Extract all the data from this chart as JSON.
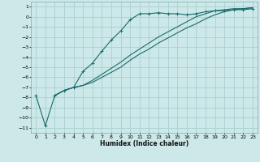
{
  "xlabel": "Humidex (Indice chaleur)",
  "ylabel": "",
  "bg_color": "#cce8e8",
  "grid_color": "#aad0d0",
  "line_color": "#1a6b6b",
  "xlim": [
    -0.5,
    23.5
  ],
  "ylim": [
    -11.5,
    1.5
  ],
  "xticks": [
    0,
    1,
    2,
    3,
    4,
    5,
    6,
    7,
    8,
    9,
    10,
    11,
    12,
    13,
    14,
    15,
    16,
    17,
    18,
    19,
    20,
    21,
    22,
    23
  ],
  "yticks": [
    1,
    0,
    -1,
    -2,
    -3,
    -4,
    -5,
    -6,
    -7,
    -8,
    -9,
    -10,
    -11
  ],
  "line1_x": [
    0,
    1,
    2,
    3,
    4,
    5,
    6,
    7,
    8,
    9,
    10,
    11,
    12,
    13,
    14,
    15,
    16,
    17,
    18,
    19,
    20,
    21,
    22,
    23
  ],
  "line1_y": [
    -7.8,
    -10.8,
    -7.8,
    -7.3,
    -7.0,
    -5.4,
    -4.6,
    -3.4,
    -2.3,
    -1.4,
    -0.3,
    0.3,
    0.3,
    0.4,
    0.3,
    0.3,
    0.2,
    0.3,
    0.5,
    0.6,
    0.6,
    0.7,
    0.7,
    0.8
  ],
  "line2_x": [
    2,
    3,
    4,
    5,
    6,
    7,
    8,
    9,
    10,
    11,
    12,
    13,
    14,
    15,
    16,
    17,
    18,
    19,
    20,
    21,
    22,
    23
  ],
  "line2_y": [
    -7.8,
    -7.3,
    -7.0,
    -6.8,
    -6.5,
    -6.0,
    -5.5,
    -5.0,
    -4.3,
    -3.7,
    -3.2,
    -2.6,
    -2.1,
    -1.6,
    -1.1,
    -0.7,
    -0.2,
    0.2,
    0.5,
    0.7,
    0.8,
    0.9
  ],
  "line3_x": [
    2,
    3,
    4,
    5,
    6,
    7,
    8,
    9,
    10,
    11,
    12,
    13,
    14,
    15,
    16,
    17,
    18,
    19,
    20,
    21,
    22,
    23
  ],
  "line3_y": [
    -7.8,
    -7.3,
    -7.0,
    -6.8,
    -6.3,
    -5.7,
    -5.1,
    -4.5,
    -3.8,
    -3.2,
    -2.6,
    -2.0,
    -1.5,
    -1.0,
    -0.5,
    0.0,
    0.3,
    0.6,
    0.7,
    0.8,
    0.8,
    0.9
  ]
}
